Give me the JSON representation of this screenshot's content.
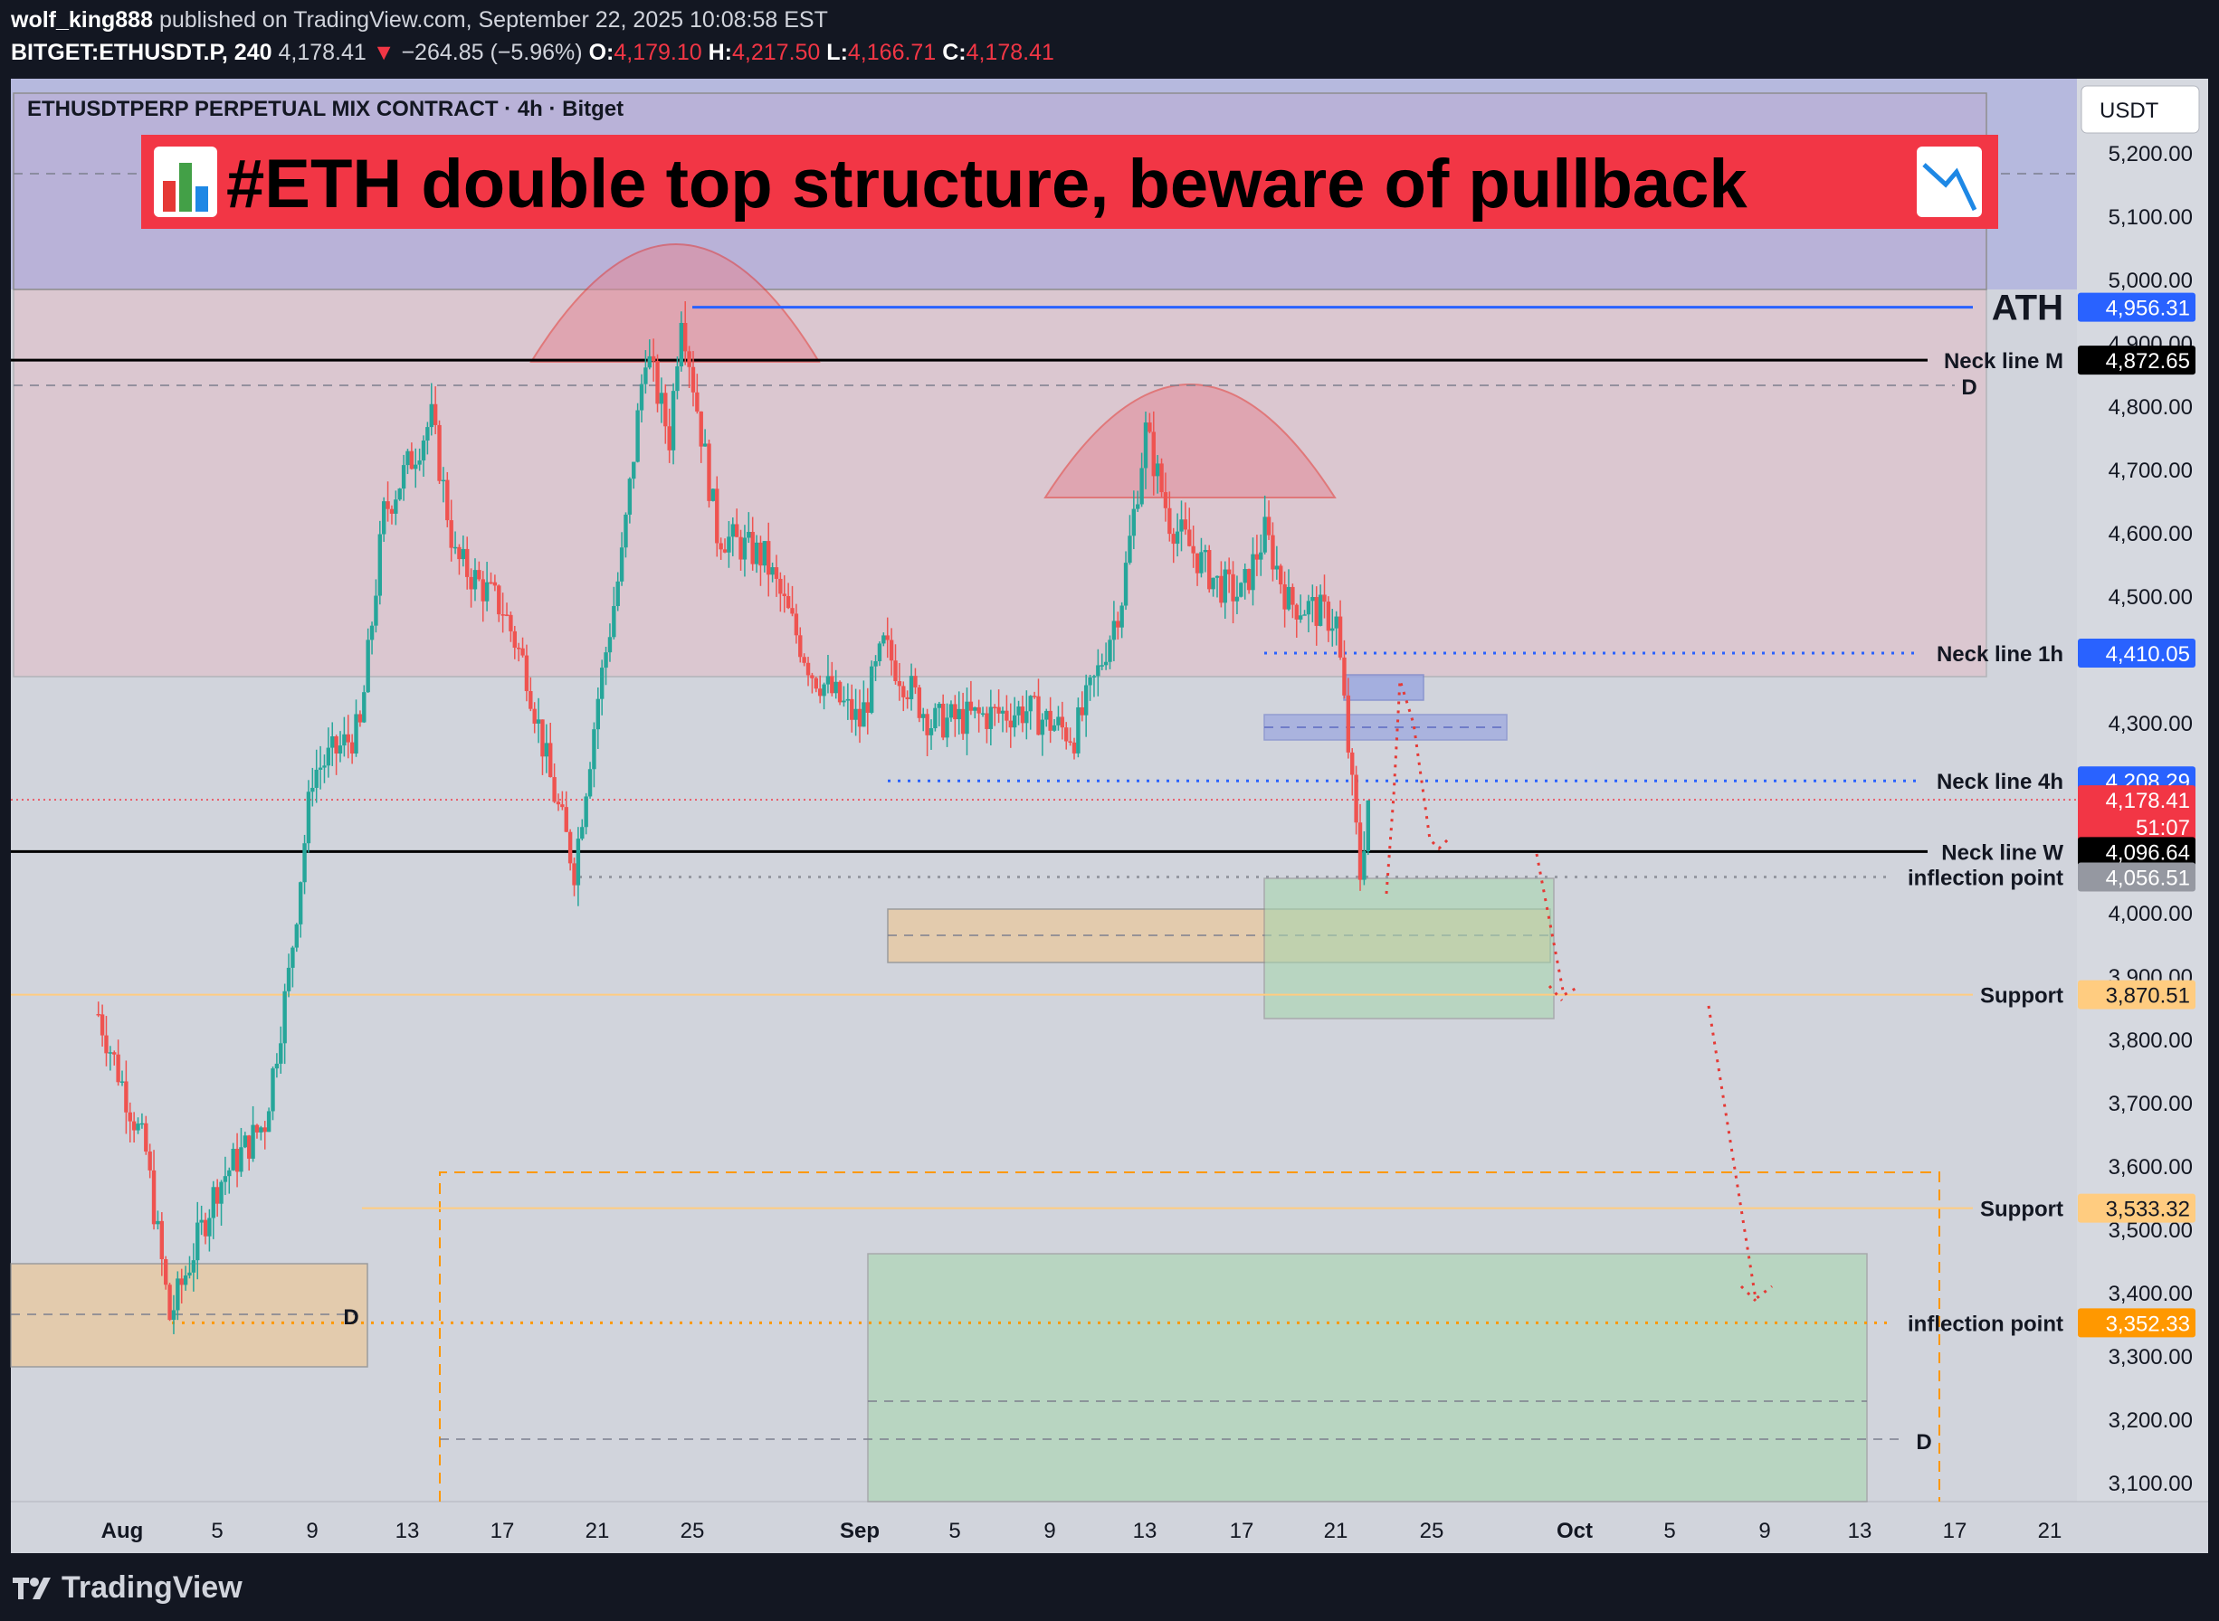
{
  "header": {
    "author": "wolf_king888",
    "published_text": "published on TradingView.com, September 22, 2025 10:08:58 EST",
    "symbol": "BITGET:ETHUSDT.P, 240",
    "last": "4,178.41",
    "change_arrow": "▼",
    "change": "−264.85 (−5.96%)",
    "o_label": "O:",
    "o_value": "4,179.10",
    "h_label": "H:",
    "h_value": "4,217.50",
    "l_label": "L:",
    "l_value": "4,166.71",
    "c_label": "C:",
    "c_value": "4,178.41"
  },
  "chart_title": "ETHUSDTPERP PERPETUAL MIX CONTRACT · 4h · Bitget",
  "banner": {
    "text": "#ETH double top structure, beware of pullback",
    "left_icon": "bar-chart-icon",
    "right_icon": "chart-decreasing-icon"
  },
  "currency_label": "USDT",
  "colors": {
    "background": "#131722",
    "plot_background": "#d1d4dc",
    "up_candle": "#26a69a",
    "down_candle": "#ef5350",
    "banner_red": "#f23645",
    "neck_blue": "#2962ff",
    "support_orange": "#ffb74d",
    "inflection_orange": "#ff9800"
  },
  "footer": {
    "brand": "TradingView"
  },
  "chart_data": {
    "type": "candlestick",
    "timeframe": "4h",
    "y_axis": {
      "ticks": [
        3100,
        3200,
        3300,
        3400,
        3500,
        3600,
        3700,
        3800,
        3900,
        4000,
        4300,
        4500,
        4600,
        4700,
        4800,
        4900,
        5000,
        5100,
        5200
      ],
      "tick_labels": [
        "3,100.00",
        "3,200.00",
        "3,300.00",
        "3,400.00",
        "3,500.00",
        "3,600.00",
        "3,700.00",
        "3,800.00",
        "3,900.00",
        "4,000.00",
        "4,300.00",
        "4,500.00",
        "4,600.00",
        "4,700.00",
        "4,800.00",
        "4,900.00",
        "5,000.00",
        "5,100.00",
        "5,200.00"
      ],
      "range": [
        3050,
        5280
      ]
    },
    "x_axis": {
      "ticks": [
        {
          "label": "Aug",
          "month_start": true
        },
        {
          "label": "5"
        },
        {
          "label": "9"
        },
        {
          "label": "13"
        },
        {
          "label": "17"
        },
        {
          "label": "21"
        },
        {
          "label": "25"
        },
        {
          "label": "Sep",
          "month_start": true
        },
        {
          "label": "5"
        },
        {
          "label": "9"
        },
        {
          "label": "13"
        },
        {
          "label": "17"
        },
        {
          "label": "21"
        },
        {
          "label": "25"
        },
        {
          "label": "Oct",
          "month_start": true
        },
        {
          "label": "5"
        },
        {
          "label": "9"
        },
        {
          "label": "13"
        },
        {
          "label": "17"
        },
        {
          "label": "21"
        }
      ]
    },
    "price_path": [
      [
        "2025-07-31",
        3840
      ],
      [
        "2025-08-02",
        3620
      ],
      [
        "2025-08-03",
        3360
      ],
      [
        "2025-08-05",
        3570
      ],
      [
        "2025-08-07",
        3670
      ],
      [
        "2025-08-08",
        3900
      ],
      [
        "2025-08-09",
        4220
      ],
      [
        "2025-08-11",
        4290
      ],
      [
        "2025-08-12",
        4630
      ],
      [
        "2025-08-14",
        4780
      ],
      [
        "2025-08-15",
        4560
      ],
      [
        "2025-08-17",
        4480
      ],
      [
        "2025-08-18",
        4380
      ],
      [
        "2025-08-19",
        4210
      ],
      [
        "2025-08-20",
        4070
      ],
      [
        "2025-08-21",
        4340
      ],
      [
        "2025-08-22",
        4560
      ],
      [
        "2025-08-23",
        4890
      ],
      [
        "2025-08-24",
        4750
      ],
      [
        "2025-08-24T12",
        4956
      ],
      [
        "2025-08-26",
        4600
      ],
      [
        "2025-08-28",
        4560
      ],
      [
        "2025-08-30",
        4380
      ],
      [
        "2025-09-01",
        4300
      ],
      [
        "2025-09-02",
        4420
      ],
      [
        "2025-09-04",
        4300
      ],
      [
        "2025-09-06",
        4310
      ],
      [
        "2025-09-08",
        4320
      ],
      [
        "2025-09-10",
        4280
      ],
      [
        "2025-09-11",
        4380
      ],
      [
        "2025-09-12",
        4500
      ],
      [
        "2025-09-13",
        4760
      ],
      [
        "2025-09-14",
        4620
      ],
      [
        "2025-09-16",
        4520
      ],
      [
        "2025-09-17",
        4500
      ],
      [
        "2025-09-18",
        4600
      ],
      [
        "2025-09-19",
        4490
      ],
      [
        "2025-09-20",
        4480
      ],
      [
        "2025-09-21",
        4460
      ],
      [
        "2025-09-22",
        4060
      ],
      [
        "2025-09-22T08",
        4178.41
      ]
    ],
    "ohlc_last": {
      "open": 4179.1,
      "high": 4217.5,
      "low": 4166.71,
      "close": 4178.41
    },
    "levels": [
      {
        "name": "ATH",
        "label": "ATH",
        "price": 4956.31,
        "price_label": "4,956.31",
        "style": "solid-blue"
      },
      {
        "name": "neck-line-m",
        "label": "Neck line M",
        "price": 4872.65,
        "price_label": "4,872.65",
        "style": "solid-black"
      },
      {
        "name": "neck-line-1h",
        "label": "Neck line 1h",
        "price": 4410.05,
        "price_label": "4,410.05",
        "style": "dotted-blue"
      },
      {
        "name": "neck-line-4h",
        "label": "Neck line 4h",
        "price": 4208.29,
        "price_label": "4,208.29",
        "style": "dotted-blue"
      },
      {
        "name": "current-price",
        "label": "",
        "price": 4178.41,
        "price_label": "4,178.41",
        "countdown": "51:07",
        "style": "dotted-red"
      },
      {
        "name": "neck-line-w",
        "label": "Neck line W",
        "price": 4096.64,
        "price_label": "4,096.64",
        "style": "solid-black"
      },
      {
        "name": "inflection-point-1",
        "label": "inflection point",
        "price": 4056.51,
        "price_label": "4,056.51",
        "style": "dotted-grey"
      },
      {
        "name": "support-1",
        "label": "Support",
        "price": 3870.51,
        "price_label": "3,870.51",
        "style": "solid-orange"
      },
      {
        "name": "support-2",
        "label": "Support",
        "price": 3533.32,
        "price_label": "3,533.32",
        "style": "solid-orange"
      },
      {
        "name": "inflection-point-2",
        "label": "inflection point",
        "price": 3352.33,
        "price_label": "3,352.33",
        "style": "dotted-orange"
      }
    ],
    "markers": [
      "D",
      "D",
      "D"
    ]
  }
}
